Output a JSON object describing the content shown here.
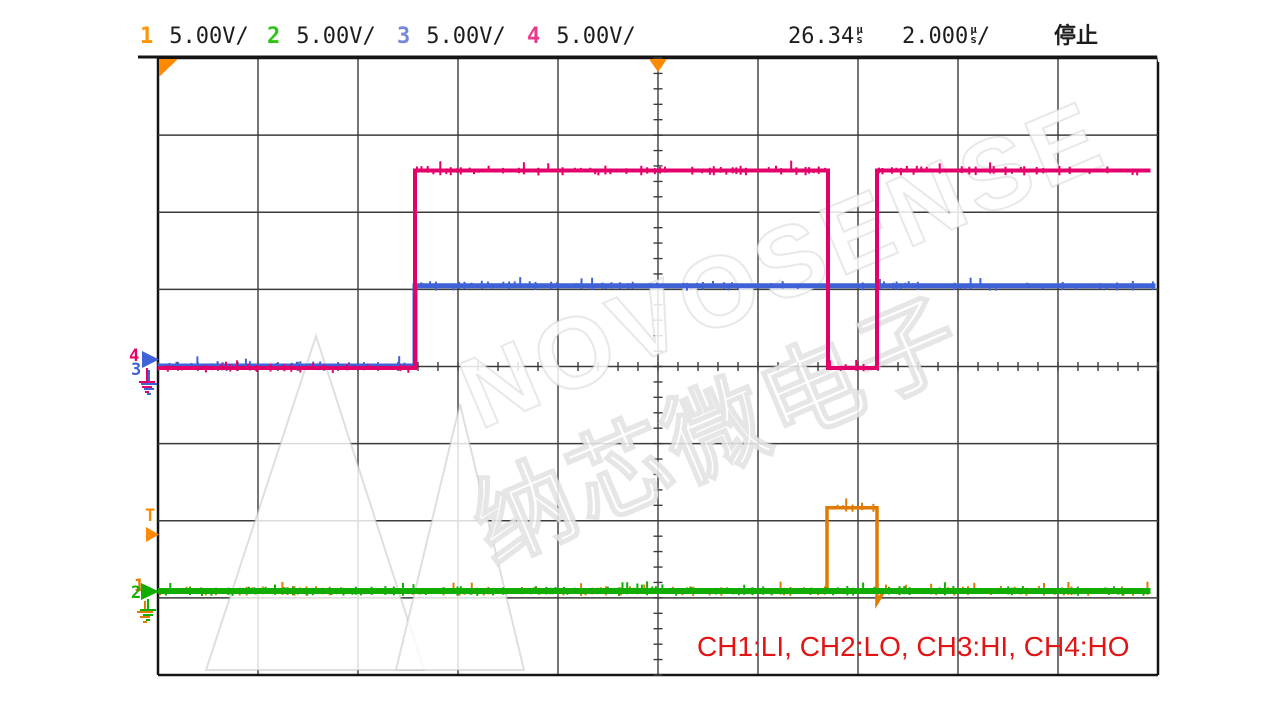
{
  "header": {
    "channels": [
      {
        "num": "1",
        "scale": "5.00V/",
        "color": "#ff9400"
      },
      {
        "num": "2",
        "scale": "5.00V/",
        "color": "#2fc413"
      },
      {
        "num": "3",
        "scale": "5.00V/",
        "color": "#7585e0"
      },
      {
        "num": "4",
        "scale": "5.00V/",
        "color": "#e83a8c"
      }
    ],
    "delay": {
      "value": "26.34",
      "unit_top": "µ",
      "unit_bottom": "s"
    },
    "timebase": {
      "value": "2.000",
      "unit_top": "µ",
      "unit_bottom": "s",
      "suffix": "/"
    },
    "run_state": "停止"
  },
  "markers": {
    "ch4": {
      "label": "4",
      "color": "#e4006a",
      "type": "ground-reference"
    },
    "ch3": {
      "label": "3",
      "color": "#3f62d6",
      "type": "ground-reference"
    },
    "trigger": {
      "label": "T",
      "color": "#ff8a00",
      "type": "trigger-level"
    },
    "ch2": {
      "label": "2",
      "color": "#12ad00",
      "type": "ground-reference"
    },
    "ch1": {
      "label": "1",
      "color": "#e07b00",
      "type": "ground-reference"
    }
  },
  "annotation": {
    "text": "CH1:LI, CH2:LO, CH3:HI, CH4:HO",
    "color": "#e31414"
  },
  "watermark": {
    "line1": "NOVOSENSE",
    "line2": "纳芯微电子"
  },
  "chart_data": {
    "type": "line",
    "x_unit": "µs",
    "y_unit": "V",
    "time_per_div_us": 2.0,
    "volts_per_div": 5.0,
    "x_range_us": [
      0,
      20
    ],
    "delay_us": 26.34,
    "grid": {
      "columns": 10,
      "rows": 8
    },
    "legend_position": "top",
    "series": [
      {
        "name": "CH1 LI",
        "color": "#e07b00",
        "points": [
          [
            0,
            0
          ],
          [
            13.38,
            0
          ],
          [
            13.38,
            5.4
          ],
          [
            14.38,
            5.4
          ],
          [
            14.38,
            -0.75
          ],
          [
            14.52,
            0
          ],
          [
            19.85,
            0
          ]
        ]
      },
      {
        "name": "CH2 LO",
        "color": "#12ad00",
        "points": [
          [
            0,
            0
          ],
          [
            19.85,
            0
          ]
        ]
      },
      {
        "name": "CH3 HI",
        "color": "#3f62d6",
        "points": [
          [
            0,
            0
          ],
          [
            5.14,
            0
          ],
          [
            5.14,
            5.2
          ],
          [
            19.95,
            5.2
          ]
        ]
      },
      {
        "name": "CH4 HO",
        "color": "#e4006a",
        "points": [
          [
            0,
            0
          ],
          [
            5.14,
            0
          ],
          [
            5.14,
            12.8
          ],
          [
            13.4,
            12.8
          ],
          [
            13.4,
            0
          ],
          [
            14.38,
            0
          ],
          [
            14.38,
            12.8
          ],
          [
            19.85,
            12.8
          ]
        ]
      }
    ]
  }
}
